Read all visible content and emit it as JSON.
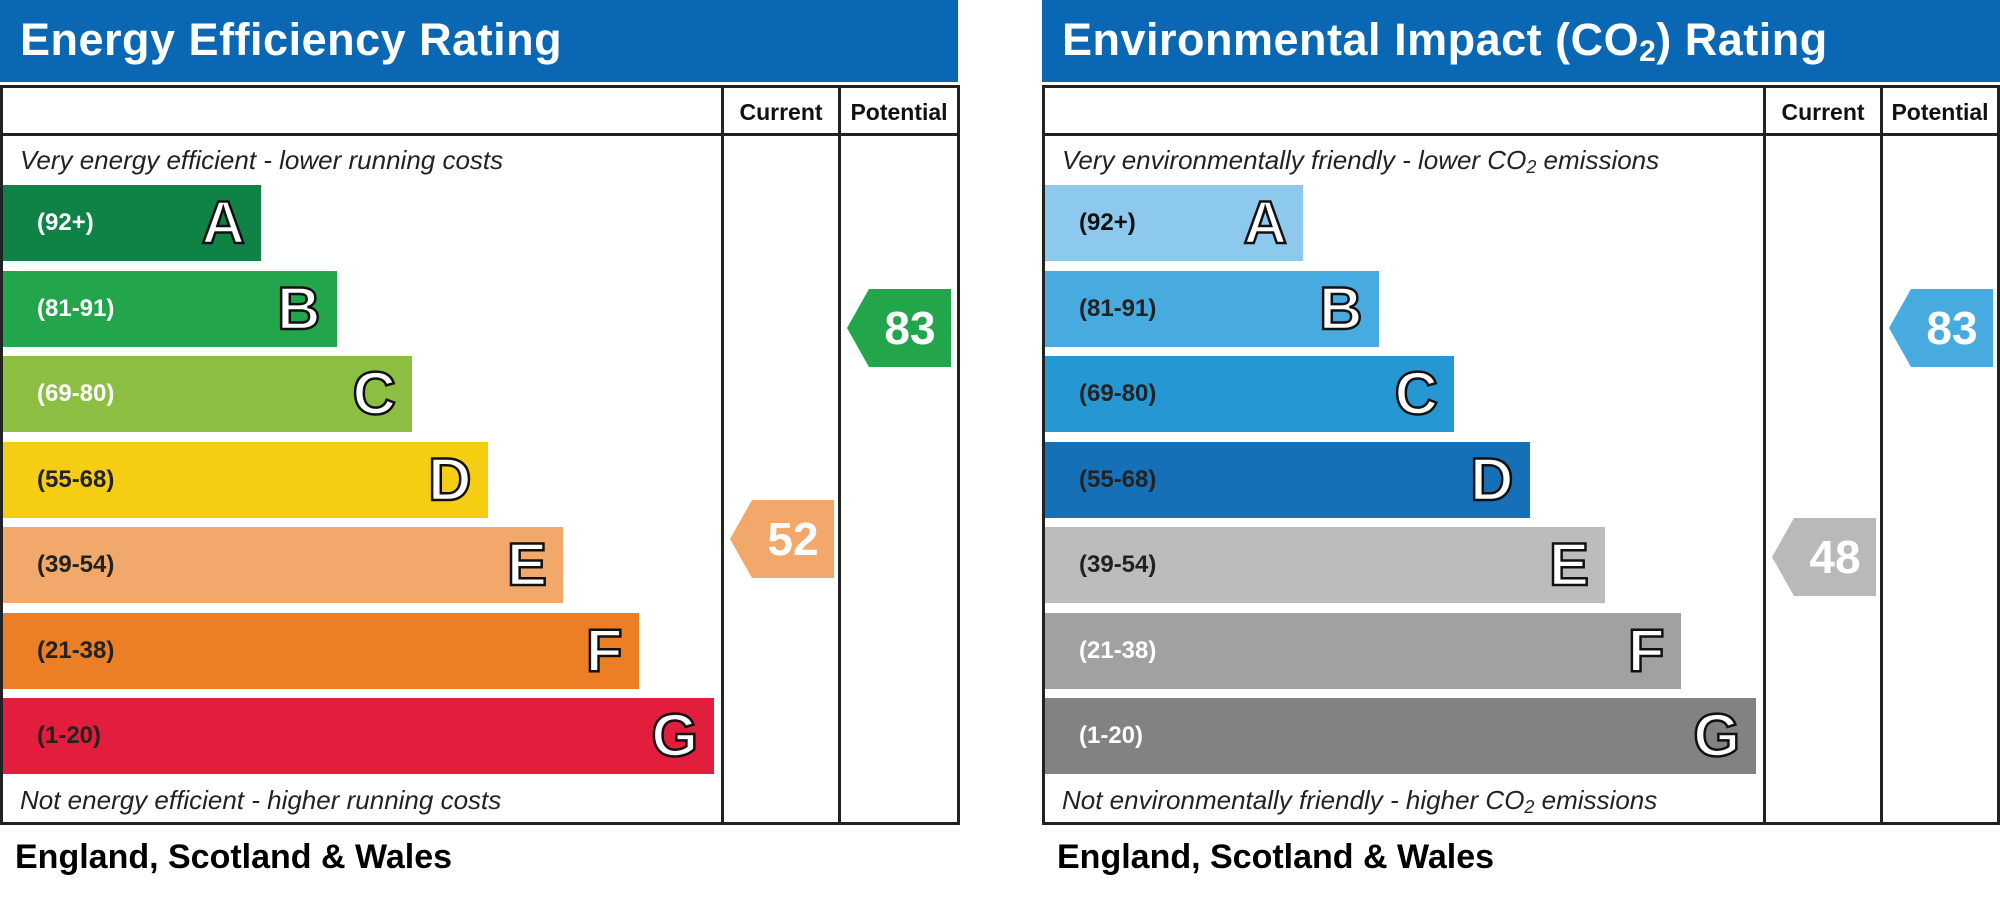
{
  "chart_data": [
    {
      "type": "bar",
      "title": "Energy Efficiency Rating",
      "top_note": "Very energy efficient - lower running costs",
      "bottom_note": "Not energy efficient - higher running costs",
      "columns": {
        "current": "Current",
        "potential": "Potential"
      },
      "footer": "England, Scotland & Wales",
      "bands": [
        {
          "range": "(92+)",
          "letter": "A",
          "color": "#0f8245",
          "text_color": "#ffffff"
        },
        {
          "range": "(81-91)",
          "letter": "B",
          "color": "#22a54b",
          "text_color": "#ffffff"
        },
        {
          "range": "(69-80)",
          "letter": "C",
          "color": "#8cbe42",
          "text_color": "#ffffff"
        },
        {
          "range": "(55-68)",
          "letter": "D",
          "color": "#f5ce14",
          "text_color": "#222222"
        },
        {
          "range": "(39-54)",
          "letter": "E",
          "color": "#f1a86a",
          "text_color": "#222222"
        },
        {
          "range": "(21-38)",
          "letter": "F",
          "color": "#ec7f26",
          "text_color": "#222222"
        },
        {
          "range": "(1-20)",
          "letter": "G",
          "color": "#e31d3c",
          "text_color": "#222222"
        }
      ],
      "current": {
        "value": 52,
        "label": "52",
        "color": "#f1a86a"
      },
      "potential": {
        "value": 83,
        "label": "83",
        "color": "#22a54b"
      }
    },
    {
      "type": "bar",
      "title_main": "Environmental Impact (CO",
      "title_sub": "2",
      "title_end": ") Rating",
      "top_note_main": "Very environmentally friendly - lower CO",
      "top_note_sub": "2",
      "top_note_end": " emissions",
      "bottom_note_main": "Not environmentally friendly - higher CO",
      "bottom_note_sub": "2",
      "bottom_note_end": " emissions",
      "columns": {
        "current": "Current",
        "potential": "Potential"
      },
      "footer": "England, Scotland & Wales",
      "bands": [
        {
          "range": "(92+)",
          "letter": "A",
          "color": "#8cc9ec",
          "text_color": "#111111"
        },
        {
          "range": "(81-91)",
          "letter": "B",
          "color": "#47abe0",
          "text_color": "#222222"
        },
        {
          "range": "(69-80)",
          "letter": "C",
          "color": "#2597d3",
          "text_color": "#222222"
        },
        {
          "range": "(55-68)",
          "letter": "D",
          "color": "#1670b8",
          "text_color": "#222222"
        },
        {
          "range": "(39-54)",
          "letter": "E",
          "color": "#bcbcba",
          "text_color": "#222222"
        },
        {
          "range": "(21-38)",
          "letter": "F",
          "color": "#a1a1a1",
          "text_color": "#ffffff"
        },
        {
          "range": "(1-20)",
          "letter": "G",
          "color": "#828282",
          "text_color": "#ffffff"
        }
      ],
      "current": {
        "value": 48,
        "label": "48",
        "color": "#b9b9b9"
      },
      "potential": {
        "value": 83,
        "label": "83",
        "color": "#47abe0"
      }
    }
  ]
}
